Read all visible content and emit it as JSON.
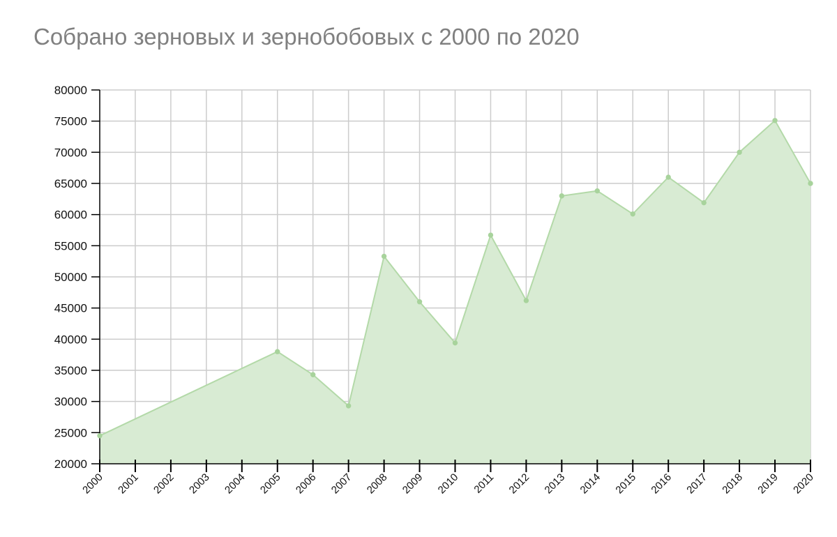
{
  "chart_data": {
    "type": "area",
    "title": "Собрано зерновых и зернобобовых с 2000 по 2020",
    "xlabel": "",
    "ylabel": "",
    "grid": true,
    "ylim": [
      20000,
      80000
    ],
    "yticks": [
      20000,
      25000,
      30000,
      35000,
      40000,
      45000,
      50000,
      55000,
      60000,
      65000,
      70000,
      75000,
      80000
    ],
    "x": [
      "2000",
      "2001",
      "2002",
      "2003",
      "2004",
      "2005",
      "2006",
      "2007",
      "2008",
      "2009",
      "2010",
      "2011",
      "2012",
      "2013",
      "2014",
      "2015",
      "2016",
      "2017",
      "2018",
      "2019",
      "2020"
    ],
    "points": [
      {
        "x": "2000",
        "y": 24500
      },
      {
        "x": "2005",
        "y": 38000
      },
      {
        "x": "2006",
        "y": 34300
      },
      {
        "x": "2007",
        "y": 29300
      },
      {
        "x": "2008",
        "y": 53300
      },
      {
        "x": "2009",
        "y": 46000
      },
      {
        "x": "2010",
        "y": 39400
      },
      {
        "x": "2011",
        "y": 56700
      },
      {
        "x": "2012",
        "y": 46200
      },
      {
        "x": "2013",
        "y": 63000
      },
      {
        "x": "2014",
        "y": 63800
      },
      {
        "x": "2015",
        "y": 60100
      },
      {
        "x": "2016",
        "y": 66000
      },
      {
        "x": "2017",
        "y": 61900
      },
      {
        "x": "2018",
        "y": 70000
      },
      {
        "x": "2019",
        "y": 75100
      },
      {
        "x": "2020",
        "y": 65000
      }
    ],
    "colors": {
      "fill": "#d8ebd3",
      "line": "#b3d9a8",
      "point": "#a8d39c",
      "grid": "#cccccc",
      "axis": "#000000",
      "title": "#808080"
    }
  }
}
